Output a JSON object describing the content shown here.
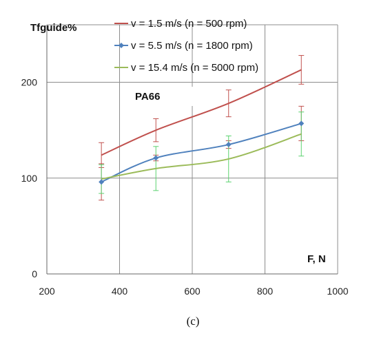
{
  "chart_data": {
    "type": "line",
    "ylabel": "Tfguide%",
    "xlabel": "F, N",
    "annotation": "PA66",
    "caption": "(c)",
    "xlim": [
      200,
      1000
    ],
    "ylim": [
      0,
      260
    ],
    "x_ticks": [
      200,
      400,
      600,
      800,
      1000
    ],
    "y_ticks": [
      0,
      100,
      200
    ],
    "grid": true,
    "legend_position": "top",
    "series": [
      {
        "name": "v = 1.5 m/s (n = 500 rpm)",
        "color": "#c0504d",
        "error_color": "#c0504d",
        "marker": "none",
        "x": [
          350,
          500,
          700,
          900
        ],
        "y": [
          124,
          150,
          178,
          213
        ],
        "error": [
          13,
          12,
          14,
          15
        ]
      },
      {
        "name": "v = 5.5 m/s (n = 1800 rpm)",
        "color": "#4f81bd",
        "error_color": "#c0504d",
        "marker": "diamond",
        "x": [
          350,
          500,
          700,
          900
        ],
        "y": [
          96,
          121,
          135,
          157
        ],
        "error": [
          19,
          3,
          4,
          18
        ]
      },
      {
        "name": "v = 15.4 m/s (n = 5000 rpm)",
        "color": "#9bbb59",
        "error_color": "#5ad26e",
        "marker": "none",
        "x": [
          350,
          500,
          700,
          900
        ],
        "y": [
          99,
          110,
          120,
          146
        ],
        "error": [
          15,
          23,
          24,
          23
        ]
      }
    ]
  }
}
